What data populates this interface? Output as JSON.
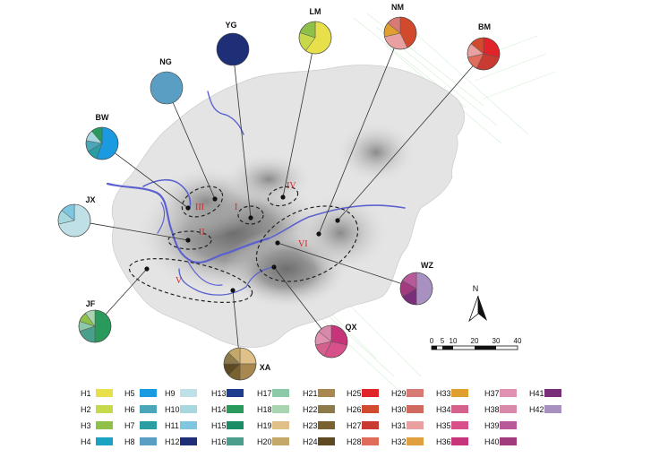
{
  "sites": [
    {
      "id": "YG",
      "label": "YG",
      "slices": [
        [
          "H12",
          1
        ]
      ]
    },
    {
      "id": "LM",
      "label": "LM",
      "slices": [
        [
          "H1",
          3
        ],
        [
          "H2",
          1
        ],
        [
          "H3",
          1
        ]
      ]
    },
    {
      "id": "NM",
      "label": "NM",
      "slices": [
        [
          "H26",
          3
        ],
        [
          "H31",
          2
        ],
        [
          "H33",
          1
        ],
        [
          "H29",
          1
        ]
      ]
    },
    {
      "id": "BM",
      "label": "BM",
      "slices": [
        [
          "H25",
          2
        ],
        [
          "H27",
          2
        ],
        [
          "H28",
          1
        ],
        [
          "H31",
          1
        ],
        [
          "H26",
          1
        ]
      ]
    },
    {
      "id": "NG",
      "label": "NG",
      "slices": [
        [
          "H8",
          1
        ]
      ]
    },
    {
      "id": "BW",
      "label": "BW",
      "slices": [
        [
          "H5",
          5
        ],
        [
          "H7",
          1
        ],
        [
          "H6",
          1
        ],
        [
          "H10",
          1
        ],
        [
          "H14",
          1
        ]
      ]
    },
    {
      "id": "JX",
      "label": "JX",
      "slices": [
        [
          "H9",
          5
        ],
        [
          "H10",
          1
        ],
        [
          "H11",
          1
        ]
      ]
    },
    {
      "id": "JF",
      "label": "JF",
      "slices": [
        [
          "H14",
          5
        ],
        [
          "H16",
          2
        ],
        [
          "H17",
          1
        ],
        [
          "H3",
          1
        ],
        [
          "H18",
          1
        ]
      ]
    },
    {
      "id": "XA",
      "label": "XA",
      "slices": [
        [
          "H19",
          2
        ],
        [
          "H21",
          2
        ],
        [
          "H23",
          1
        ],
        [
          "H24",
          1
        ],
        [
          "H22",
          1
        ],
        [
          "H20",
          1
        ]
      ]
    },
    {
      "id": "QX",
      "label": "QX",
      "slices": [
        [
          "H36",
          2
        ],
        [
          "H35",
          2
        ],
        [
          "H34",
          1
        ],
        [
          "H37",
          1
        ],
        [
          "H38",
          1
        ]
      ]
    },
    {
      "id": "WZ",
      "label": "WZ",
      "slices": [
        [
          "H42",
          3
        ],
        [
          "H41",
          1
        ],
        [
          "H40",
          1
        ],
        [
          "H39",
          1
        ]
      ]
    }
  ],
  "regions": [
    "I",
    "II",
    "III",
    "IV",
    "V",
    "VI"
  ],
  "north_label": "N",
  "scale_labels": [
    "0",
    "5",
    "10",
    "20",
    "30",
    "40"
  ],
  "legend": [
    {
      "name": "H1",
      "color": "#e8e04a"
    },
    {
      "name": "H2",
      "color": "#c7d94a"
    },
    {
      "name": "H3",
      "color": "#8fc04a"
    },
    {
      "name": "H4",
      "color": "#1aa3c2"
    },
    {
      "name": "H5",
      "color": "#1a9ae0"
    },
    {
      "name": "H6",
      "color": "#4aa6b8"
    },
    {
      "name": "H7",
      "color": "#2a9ea2"
    },
    {
      "name": "H8",
      "color": "#5b9ec4"
    },
    {
      "name": "H9",
      "color": "#bfe0e6"
    },
    {
      "name": "H10",
      "color": "#a7d8de"
    },
    {
      "name": "H11",
      "color": "#7fc6e0"
    },
    {
      "name": "H12",
      "color": "#1e2f78"
    },
    {
      "name": "H13",
      "color": "#1e3c8e"
    },
    {
      "name": "H14",
      "color": "#2a9a5c"
    },
    {
      "name": "H15",
      "color": "#1a8c66"
    },
    {
      "name": "H16",
      "color": "#4a9e8c"
    },
    {
      "name": "H17",
      "color": "#8cc9a8"
    },
    {
      "name": "H18",
      "color": "#a8d4b0"
    },
    {
      "name": "H19",
      "color": "#e0c088"
    },
    {
      "name": "H20",
      "color": "#c4a86a"
    },
    {
      "name": "H21",
      "color": "#a8884e"
    },
    {
      "name": "H22",
      "color": "#8c7a4a"
    },
    {
      "name": "H23",
      "color": "#7a6230"
    },
    {
      "name": "H24",
      "color": "#5e4a22"
    },
    {
      "name": "H25",
      "color": "#e0242a"
    },
    {
      "name": "H26",
      "color": "#d24a2e"
    },
    {
      "name": "H27",
      "color": "#c83a32"
    },
    {
      "name": "H28",
      "color": "#e06c5a"
    },
    {
      "name": "H29",
      "color": "#d87a74"
    },
    {
      "name": "H30",
      "color": "#d06a5e"
    },
    {
      "name": "H31",
      "color": "#e8a0a0"
    },
    {
      "name": "H32",
      "color": "#e0a040"
    },
    {
      "name": "H33",
      "color": "#e0a030"
    },
    {
      "name": "H34",
      "color": "#d4608c"
    },
    {
      "name": "H35",
      "color": "#d8508a"
    },
    {
      "name": "H36",
      "color": "#c8347a"
    },
    {
      "name": "H37",
      "color": "#e090b0"
    },
    {
      "name": "H38",
      "color": "#d888a8"
    },
    {
      "name": "H39",
      "color": "#b85a9a"
    },
    {
      "name": "H40",
      "color": "#a23a7e"
    },
    {
      "name": "H41",
      "color": "#7a2e7a"
    },
    {
      "name": "H42",
      "color": "#a890c0"
    }
  ]
}
